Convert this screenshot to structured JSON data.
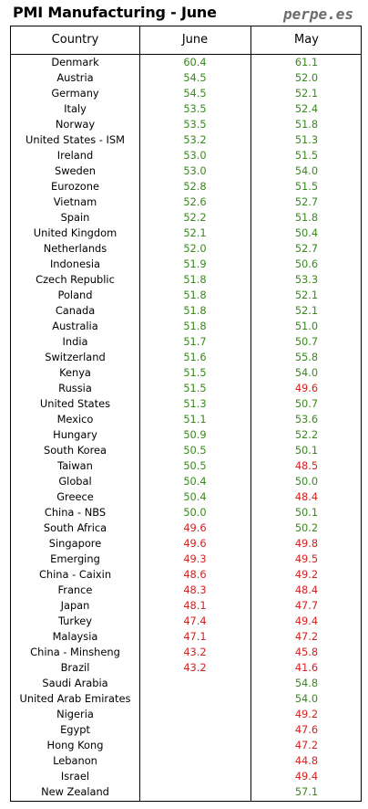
{
  "title": "PMI Manufacturing - June",
  "brand": "perpe.es",
  "colors": {
    "above50": "#3a8a1e",
    "below50": "#d42222",
    "threshold": 50
  },
  "chart_data": {
    "type": "table",
    "columns": [
      "Country",
      "June",
      "May"
    ],
    "rows": [
      [
        "Denmark",
        60.4,
        61.1
      ],
      [
        "Austria",
        54.5,
        52.0
      ],
      [
        "Germany",
        54.5,
        52.1
      ],
      [
        "Italy",
        53.5,
        52.4
      ],
      [
        "Norway",
        53.5,
        51.8
      ],
      [
        "United States - ISM",
        53.2,
        51.3
      ],
      [
        "Ireland",
        53.0,
        51.5
      ],
      [
        "Sweden",
        53.0,
        54.0
      ],
      [
        "Eurozone",
        52.8,
        51.5
      ],
      [
        "Vietnam",
        52.6,
        52.7
      ],
      [
        "Spain",
        52.2,
        51.8
      ],
      [
        "United Kingdom",
        52.1,
        50.4
      ],
      [
        "Netherlands",
        52.0,
        52.7
      ],
      [
        "Indonesia",
        51.9,
        50.6
      ],
      [
        "Czech Republic",
        51.8,
        53.3
      ],
      [
        "Poland",
        51.8,
        52.1
      ],
      [
        "Canada",
        51.8,
        52.1
      ],
      [
        "Australia",
        51.8,
        51.0
      ],
      [
        "India",
        51.7,
        50.7
      ],
      [
        "Switzerland",
        51.6,
        55.8
      ],
      [
        "Kenya",
        51.5,
        54.0
      ],
      [
        "Russia",
        51.5,
        49.6
      ],
      [
        "United States",
        51.3,
        50.7
      ],
      [
        "Mexico",
        51.1,
        53.6
      ],
      [
        "Hungary",
        50.9,
        52.2
      ],
      [
        "South Korea",
        50.5,
        50.1
      ],
      [
        "Taiwan",
        50.5,
        48.5
      ],
      [
        "Global",
        50.4,
        50.0
      ],
      [
        "Greece",
        50.4,
        48.4
      ],
      [
        "China - NBS",
        50.0,
        50.1
      ],
      [
        "South Africa",
        49.6,
        50.2
      ],
      [
        "Singapore",
        49.6,
        49.8
      ],
      [
        "Emerging",
        49.3,
        49.5
      ],
      [
        "China - Caixin",
        48.6,
        49.2
      ],
      [
        "France",
        48.3,
        48.4
      ],
      [
        "Japan",
        48.1,
        47.7
      ],
      [
        "Turkey",
        47.4,
        49.4
      ],
      [
        "Malaysia",
        47.1,
        47.2
      ],
      [
        "China - Minsheng",
        43.2,
        45.8
      ],
      [
        "Brazil",
        43.2,
        41.6
      ],
      [
        "Saudi Arabia",
        null,
        54.8
      ],
      [
        "United Arab Emirates",
        null,
        54.0
      ],
      [
        "Nigeria",
        null,
        49.2
      ],
      [
        "Egypt",
        null,
        47.6
      ],
      [
        "Hong Kong",
        null,
        47.2
      ],
      [
        "Lebanon",
        null,
        44.8
      ],
      [
        "Israel",
        null,
        49.4
      ],
      [
        "New Zealand",
        null,
        57.1
      ]
    ]
  }
}
